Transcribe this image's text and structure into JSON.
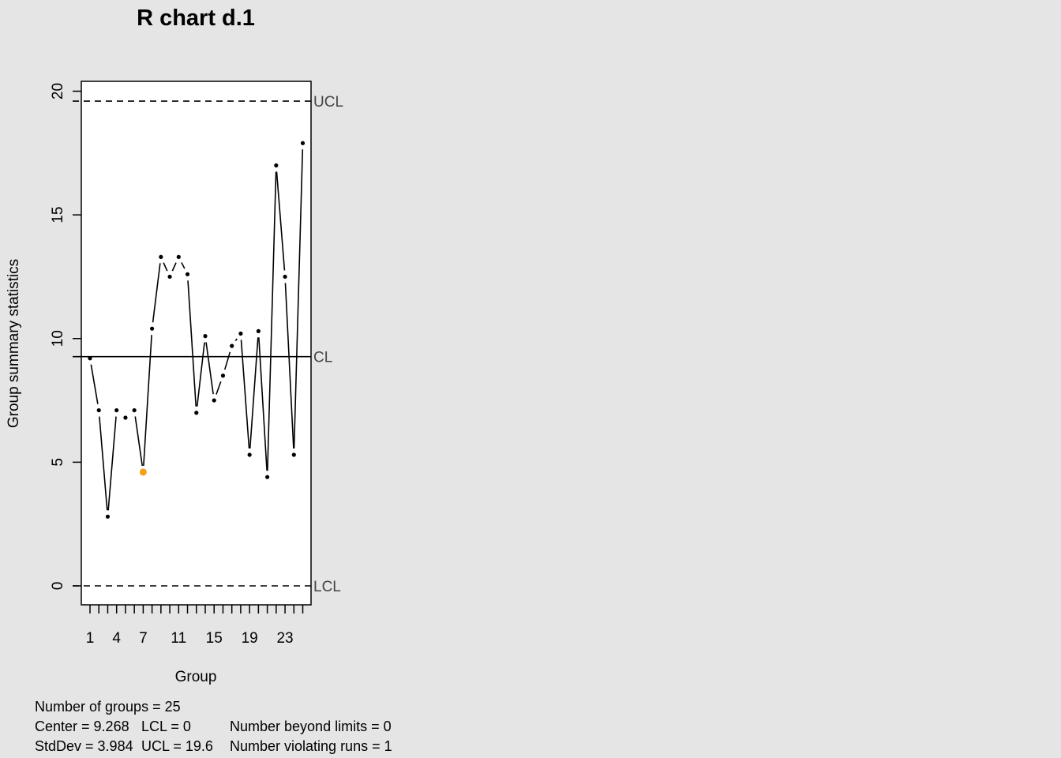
{
  "chart_data": {
    "type": "line",
    "title": "R chart d.1",
    "xlabel": "Group",
    "ylabel": "Group summary statistics",
    "x": [
      1,
      2,
      3,
      4,
      5,
      6,
      7,
      8,
      9,
      10,
      11,
      12,
      13,
      14,
      15,
      16,
      17,
      18,
      19,
      20,
      21,
      22,
      23,
      24,
      25
    ],
    "values": [
      9.2,
      7.1,
      2.8,
      7.1,
      6.8,
      7.1,
      4.6,
      10.4,
      13.3,
      12.5,
      13.3,
      12.6,
      7.0,
      10.1,
      7.5,
      8.5,
      9.7,
      10.2,
      5.3,
      10.3,
      4.4,
      17.0,
      12.5,
      5.3,
      17.9
    ],
    "violating_index": 7,
    "ylim": [
      -0.8,
      20.4
    ],
    "yticks": [
      0,
      5,
      10,
      15,
      20
    ],
    "xtick_labels": [
      "1",
      "4",
      "7",
      "11",
      "15",
      "19",
      "23"
    ],
    "limits": {
      "ucl": 19.6,
      "cl": 9.268,
      "lcl": 0,
      "ucl_label": "UCL",
      "cl_label": "CL",
      "lcl_label": "LCL"
    },
    "colors": {
      "background": "#e5e5e5",
      "plot": "#ffffff",
      "series": "#000000",
      "violation": "#f5a01a",
      "limit_label": "#444444"
    }
  },
  "stats": {
    "groups": "Number of groups = 25",
    "center": "Center = 9.268",
    "stddev": "StdDev = 3.984",
    "lcl": "LCL = 0",
    "ucl": "UCL = 19.6",
    "beyond": "Number beyond limits = 0",
    "violating": "Number violating runs = 1"
  }
}
